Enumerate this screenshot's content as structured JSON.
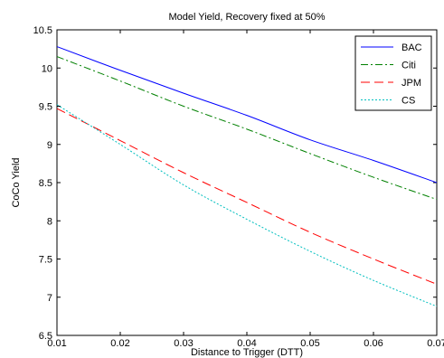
{
  "chart_data": {
    "type": "line",
    "title": "Model Yield, Recovery fixed at 50%",
    "xlabel": "Distance to Trigger (DTT)",
    "ylabel": "CoCo Yield",
    "xlim": [
      0.01,
      0.07
    ],
    "ylim": [
      6.5,
      10.5
    ],
    "grid": false,
    "legend_position": "top-right",
    "x_ticks": [
      "0.01",
      "0.02",
      "0.03",
      "0.04",
      "0.05",
      "0.06",
      "0.07"
    ],
    "y_ticks": [
      "6.5",
      "7",
      "7.5",
      "8",
      "8.5",
      "9",
      "9.5",
      "10",
      "10.5"
    ],
    "x": [
      0.01,
      0.02,
      0.03,
      0.04,
      0.05,
      0.06,
      0.07
    ],
    "series": [
      {
        "name": "BAC",
        "color": "#0000ff",
        "dash": "solid",
        "values": [
          10.28,
          9.97,
          9.67,
          9.38,
          9.06,
          8.79,
          8.5
        ]
      },
      {
        "name": "Citi",
        "color": "#008000",
        "dash": "dashdot",
        "values": [
          10.15,
          9.83,
          9.5,
          9.2,
          8.88,
          8.57,
          8.28
        ]
      },
      {
        "name": "JPM",
        "color": "#ff0000",
        "dash": "dashed",
        "values": [
          9.47,
          9.05,
          8.63,
          8.24,
          7.85,
          7.5,
          7.17
        ]
      },
      {
        "name": "CS",
        "color": "#00bfbf",
        "dash": "dotted",
        "values": [
          9.52,
          9.0,
          8.47,
          8.02,
          7.6,
          7.22,
          6.88
        ]
      }
    ]
  }
}
